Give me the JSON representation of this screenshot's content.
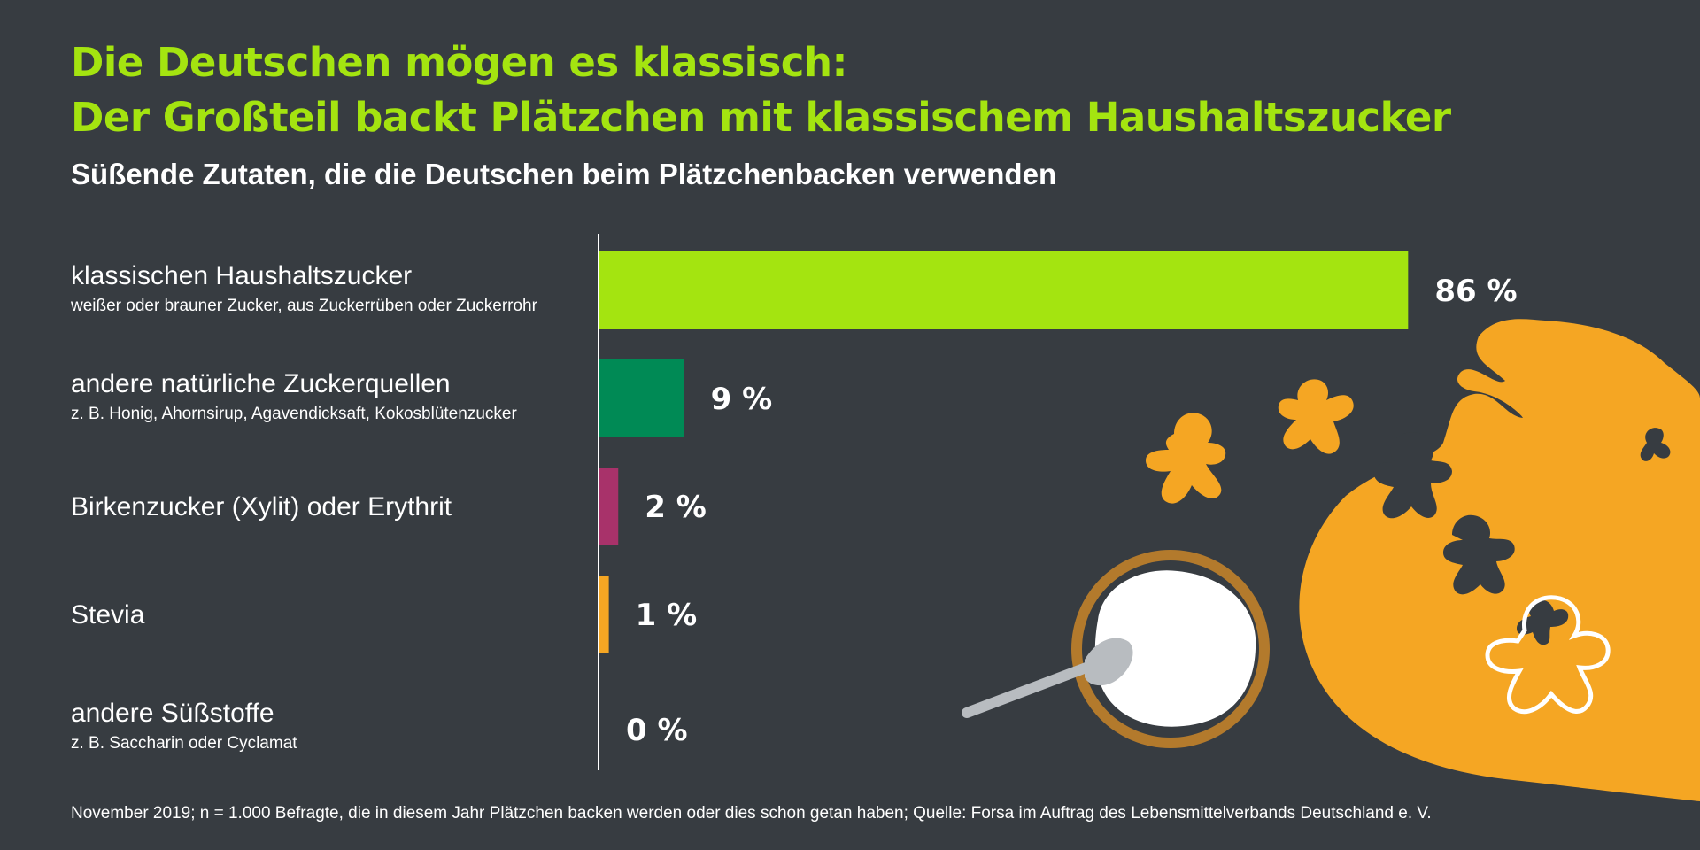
{
  "header": {
    "title_line1": "Die Deutschen mögen es klassisch:",
    "title_line2": "Der Großteil backt Plätzchen mit klassischem Haushaltszucker",
    "subtitle": "Süßende Zutaten, die die Deutschen beim Plätzchenbacken verwenden"
  },
  "chart_data": {
    "type": "bar",
    "orientation": "horizontal",
    "categories": [
      {
        "label": "klassischen Haushaltszucker",
        "sublabel": "weißer oder brauner Zucker, aus Zuckerrüben oder Zuckerrohr"
      },
      {
        "label": "andere natürliche Zuckerquellen",
        "sublabel": "z. B. Honig, Ahornsirup, Agavendicksaft, Kokosblütenzucker"
      },
      {
        "label": "Birkenzucker (Xylit) oder Erythrit",
        "sublabel": ""
      },
      {
        "label": "Stevia",
        "sublabel": ""
      },
      {
        "label": "andere Süßstoffe",
        "sublabel": "z. B. Saccharin oder Cyclamat"
      }
    ],
    "values": [
      86,
      9,
      2,
      1,
      0
    ],
    "value_labels": [
      "86 %",
      "9 %",
      "2 %",
      "1 %",
      "0 %"
    ],
    "bar_colors": [
      "#a4e410",
      "#008a55",
      "#a8326a",
      "#f5a623",
      "#f5a623"
    ],
    "unit": "%",
    "xlim": [
      0,
      100
    ],
    "grid": false,
    "legend": "none"
  },
  "footnote": "November 2019; n = 1.000 Befragte, die in diesem Jahr Plätzchen backen werden oder dies schon getan haben; Quelle: Forsa im Auftrag des Lebensmittelverbands Deutschland e. V.",
  "colors": {
    "background": "#373c41",
    "accent": "#a4e410",
    "dough": "#f5a623",
    "bowl": "#b37a2c",
    "flour": "#ffffff",
    "spoon": "#b8bcc0"
  },
  "illustration": {
    "icons": [
      "gingerbread-cookie-icon",
      "mixing-bowl-icon",
      "spoon-icon",
      "cookie-cutter-icon",
      "dough-icon"
    ]
  }
}
